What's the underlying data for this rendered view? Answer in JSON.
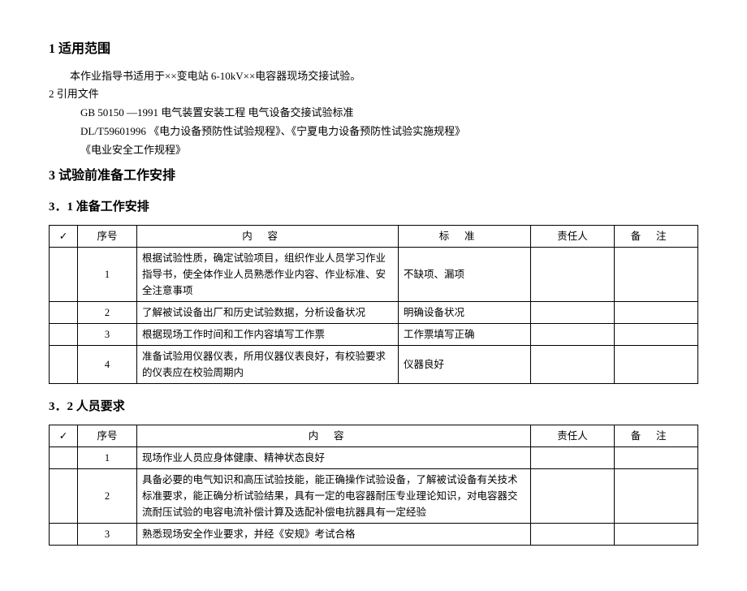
{
  "sec1": {
    "heading": "1  适用范围",
    "body": "本作业指导书适用于××变电站 6-10kV××电容器现场交接试验。"
  },
  "sec2": {
    "heading": "2  引用文件",
    "ref1": "GB 50150 —1991 电气装置安装工程    电气设备交接试验标准",
    "ref2": "DL/T59601996  《电力设备预防性试验规程》、《宁夏电力设备预防性试验实施规程》",
    "ref3": "《电业安全工作规程》"
  },
  "sec3": {
    "heading": "3  试验前准备工作安排"
  },
  "sec3_1": {
    "heading": "3．1 准备工作安排",
    "headers": {
      "check": "✓",
      "seq": "序号",
      "content": "内容",
      "std": "标准",
      "resp": "责任人",
      "note": "备注"
    },
    "rows": [
      {
        "seq": "1",
        "content": "根据试验性质，确定试验项目，组织作业人员学习作业指导书，使全体作业人员熟悉作业内容、作业标准、安全注意事项",
        "std": "不缺项、漏项",
        "resp": "",
        "note": ""
      },
      {
        "seq": "2",
        "content": "了解被试设备出厂和历史试验数据，分析设备状况",
        "std": "明确设备状况",
        "resp": "",
        "note": ""
      },
      {
        "seq": "3",
        "content": "根据现场工作时间和工作内容填写工作票",
        "std": "工作票填写正确",
        "resp": "",
        "note": ""
      },
      {
        "seq": "4",
        "content": "准备试验用仪器仪表，所用仪器仪表良好，有校验要求的仪表应在校验周期内",
        "std": "仪器良好",
        "resp": "",
        "note": ""
      }
    ]
  },
  "sec3_2": {
    "heading": "3．2 人员要求",
    "headers": {
      "check": "✓",
      "seq": "序号",
      "content": "内容",
      "resp": "责任人",
      "note": "备注"
    },
    "rows": [
      {
        "seq": "1",
        "content": "现场作业人员应身体健康、精神状态良好",
        "resp": "",
        "note": ""
      },
      {
        "seq": "2",
        "content": "具备必要的电气知识和高压试验技能，能正确操作试验设备，了解被试设备有关技术标准要求，能正确分析试验结果，具有一定的电容器耐压专业理论知识，对电容器交流耐压试验的电容电流补偿计算及选配补偿电抗器具有一定经验",
        "resp": "",
        "note": ""
      },
      {
        "seq": "3",
        "content": "熟悉现场安全作业要求，并经《安规》考试合格",
        "resp": "",
        "note": ""
      }
    ]
  }
}
